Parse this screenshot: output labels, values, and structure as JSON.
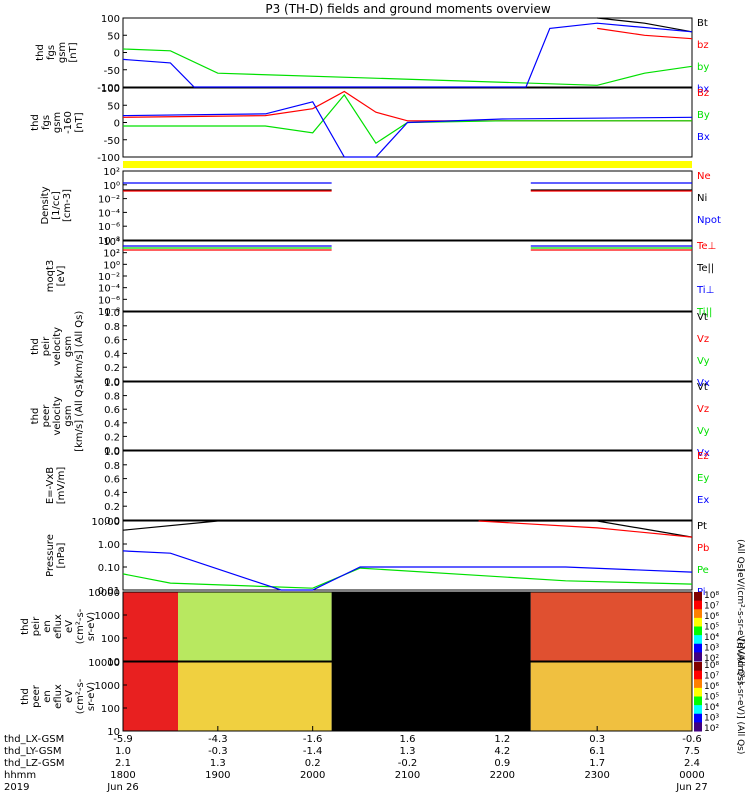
{
  "title": "P3 (TH-D) fields and ground moments overview",
  "colors": {
    "black": "#000000",
    "red": "#ff0000",
    "green": "#00e000",
    "blue": "#0000ff",
    "yellow": "#ffff00"
  },
  "panels": [
    {
      "ylabel": [
        "thd",
        "fgs",
        "gsm",
        "[nT]"
      ],
      "ticks": [
        "100",
        "50",
        "0",
        "-50",
        "-100"
      ],
      "legend": [
        {
          "t": "Bt",
          "c": "black"
        },
        {
          "t": "bz",
          "c": "red"
        },
        {
          "t": "by",
          "c": "green"
        },
        {
          "t": "bx",
          "c": "blue"
        }
      ]
    },
    {
      "ylabel": [
        "thd",
        "fgs",
        "gsm",
        "-160",
        "[nT]"
      ],
      "ticks": [
        "100",
        "50",
        "0",
        "-50",
        "-100"
      ],
      "legend": [
        {
          "t": "Bz",
          "c": "red"
        },
        {
          "t": "By",
          "c": "green"
        },
        {
          "t": "Bx",
          "c": "blue"
        }
      ]
    },
    {
      "ylabel": [
        "Density",
        "[1/cc]",
        "[cm-3]"
      ],
      "ticks": [
        "10²",
        "10⁰",
        "10⁻²",
        "10⁻⁴",
        "10⁻⁶",
        "10⁻⁸"
      ],
      "legend": [
        {
          "t": "Ne",
          "c": "red"
        },
        {
          "t": "Ni",
          "c": "black"
        },
        {
          "t": "Npot",
          "c": "blue"
        }
      ]
    },
    {
      "ylabel": [
        "moqt3",
        "[eV]"
      ],
      "ticks": [
        "10⁴",
        "10²",
        "10⁰",
        "10⁻²",
        "10⁻⁴",
        "10⁻⁶",
        "10⁻⁸"
      ],
      "legend": [
        {
          "t": "Te⊥",
          "c": "red"
        },
        {
          "t": "Te||",
          "c": "black"
        },
        {
          "t": "Ti⊥",
          "c": "blue"
        },
        {
          "t": "Ti||",
          "c": "green"
        }
      ]
    },
    {
      "ylabel": [
        "thd",
        "peir",
        "velocity",
        "gsm",
        "[km/s] (All Qs)"
      ],
      "ticks": [
        "1.0",
        "0.8",
        "0.6",
        "0.4",
        "0.2",
        "0.0"
      ],
      "legend": [
        {
          "t": "Vt",
          "c": "black"
        },
        {
          "t": "Vz",
          "c": "red"
        },
        {
          "t": "Vy",
          "c": "green"
        },
        {
          "t": "Vx",
          "c": "blue"
        }
      ]
    },
    {
      "ylabel": [
        "thd",
        "peer",
        "velocity",
        "gsm",
        "[km/s] (All Qs)"
      ],
      "ticks": [
        "1.0",
        "0.8",
        "0.6",
        "0.4",
        "0.2",
        "0.0"
      ],
      "legend": [
        {
          "t": "Vt",
          "c": "black"
        },
        {
          "t": "Vz",
          "c": "red"
        },
        {
          "t": "Vy",
          "c": "green"
        },
        {
          "t": "Vx",
          "c": "blue"
        }
      ]
    },
    {
      "ylabel": [
        "E=-VxB",
        "[mV/m]"
      ],
      "ticks": [
        "1.0",
        "0.8",
        "0.6",
        "0.4",
        "0.2",
        "0.0"
      ],
      "legend": [
        {
          "t": "Ez",
          "c": "red"
        },
        {
          "t": "Ey",
          "c": "green"
        },
        {
          "t": "Ex",
          "c": "blue"
        }
      ]
    },
    {
      "ylabel": [
        "Pressure",
        "[nPa]"
      ],
      "ticks": [
        "10.00",
        "1.00",
        "0.10",
        "0.01"
      ],
      "legend": [
        {
          "t": "Pt",
          "c": "black"
        },
        {
          "t": "Pb",
          "c": "red"
        },
        {
          "t": "Pe",
          "c": "green"
        },
        {
          "t": "Pi",
          "c": "blue"
        }
      ],
      "rlabel": "(All Qs)"
    },
    {
      "ylabel": [
        "thd",
        "peir",
        "en",
        "eflux",
        "eV",
        "(cm²-s-",
        "sr-eV)"
      ],
      "ticks": [
        "10000",
        "1000",
        "100",
        "10"
      ],
      "cbar": [
        "10⁸",
        "10⁷",
        "10⁶",
        "10⁵",
        "10⁴",
        "10³",
        "10²"
      ],
      "cbarlabel": "[eV/(cm²-s-sr-eV)] (All Qs)"
    },
    {
      "ylabel": [
        "thd",
        "peer",
        "en",
        "eflux",
        "eV",
        "(cm²-s-",
        "sr-eV)"
      ],
      "ticks": [
        "10000",
        "1000",
        "100",
        "10"
      ],
      "cbar": [
        "10⁸",
        "10⁷",
        "10⁶",
        "10⁵",
        "10⁴",
        "10³",
        "10²"
      ],
      "cbarlabel": "[eV/(cm²-s-sr-eV)] (All Qs)"
    }
  ],
  "xaxis": {
    "row_labels": [
      "thd_LX-GSM",
      "thd_LY-GSM",
      "thd_LZ-GSM",
      "hhmm",
      "2019"
    ],
    "cols": [
      [
        "-5.9",
        "1.0",
        "2.1",
        "1800",
        "Jun 26"
      ],
      [
        "-4.3",
        "-0.3",
        "1.3",
        "1900",
        ""
      ],
      [
        "-1.6",
        "-1.4",
        "0.2",
        "2000",
        ""
      ],
      [
        "1.6",
        "1.3",
        "-0.2",
        "2100",
        ""
      ],
      [
        "1.2",
        "4.2",
        "0.9",
        "2200",
        ""
      ],
      [
        "0.3",
        "6.1",
        "1.7",
        "2300",
        ""
      ],
      [
        "-0.6",
        "7.5",
        "2.4",
        "0000",
        "Jun 27"
      ]
    ]
  },
  "chart_data": {
    "type": "line",
    "title": "P3 (TH-D) fields and ground moments overview",
    "x": [
      "1800",
      "1900",
      "2000",
      "2100",
      "2200",
      "2300",
      "0000"
    ],
    "series": [
      {
        "name": "Bt",
        "x": [
          "1800",
          "2300",
          "2330",
          "0000"
        ],
        "values": [
          null,
          100,
          85,
          60
        ]
      },
      {
        "name": "bz",
        "x": [
          "2300",
          "2330",
          "0000"
        ],
        "values": [
          70,
          50,
          40
        ]
      },
      {
        "name": "by",
        "x": [
          "1800",
          "1830",
          "1900",
          "2300",
          "2330",
          "0000"
        ],
        "values": [
          10,
          5,
          -60,
          -95,
          -60,
          -40
        ]
      },
      {
        "name": "bx",
        "x": [
          "1800",
          "1830",
          "1845",
          "2215",
          "2230",
          "2300",
          "0000"
        ],
        "values": [
          -20,
          -30,
          -100,
          -100,
          70,
          85,
          60
        ]
      },
      {
        "name": "Bz",
        "x": [
          "1800",
          "1930",
          "2000",
          "2020",
          "2040",
          "2100",
          "2200",
          "0000"
        ],
        "values": [
          15,
          20,
          40,
          90,
          30,
          5,
          5,
          5
        ]
      },
      {
        "name": "By",
        "x": [
          "1800",
          "1930",
          "2000",
          "2020",
          "2040",
          "2100",
          "2200",
          "0000"
        ],
        "values": [
          -10,
          -10,
          -30,
          80,
          -60,
          0,
          5,
          5
        ]
      },
      {
        "name": "Bx",
        "x": [
          "1800",
          "1930",
          "2000",
          "2020",
          "2040",
          "2100",
          "2200",
          "0000"
        ],
        "values": [
          20,
          25,
          60,
          -100,
          -100,
          0,
          10,
          15
        ]
      },
      {
        "name": "Pt",
        "x": [
          "1800",
          "1900",
          "2300",
          "0000"
        ],
        "values": [
          4,
          15,
          15,
          2
        ]
      },
      {
        "name": "Pb",
        "x": [
          "2145",
          "2300",
          "0000"
        ],
        "values": [
          15,
          5,
          2
        ]
      },
      {
        "name": "Pe",
        "x": [
          "1800",
          "1830",
          "2000",
          "2030",
          "2240",
          "0000"
        ],
        "values": [
          0.05,
          0.02,
          0.012,
          0.09,
          0.025,
          0.018
        ]
      },
      {
        "name": "Pi",
        "x": [
          "1800",
          "1830",
          "1940",
          "2000",
          "2030",
          "2240",
          "0000"
        ],
        "values": [
          0.5,
          0.4,
          0.007,
          0.005,
          0.1,
          0.1,
          0.06
        ]
      }
    ]
  }
}
